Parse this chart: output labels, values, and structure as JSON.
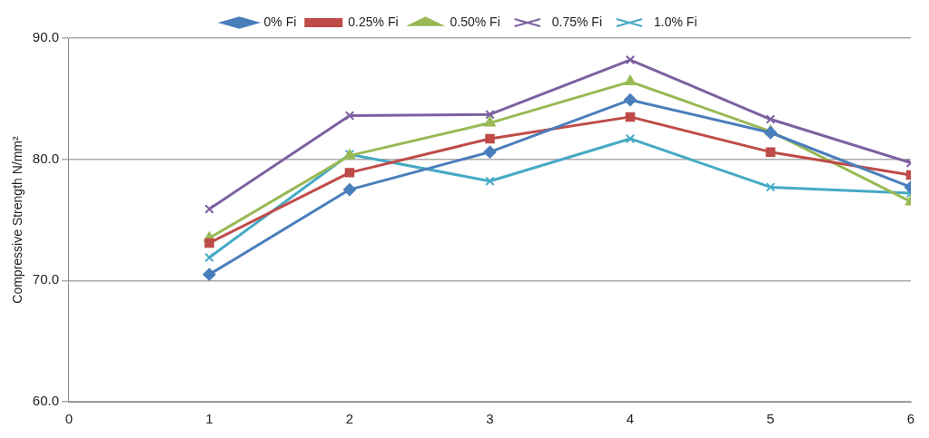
{
  "chart_data": {
    "type": "line",
    "ylabel": "Compressive Strength N/mm²",
    "x": [
      1,
      2,
      3,
      4,
      5,
      6
    ],
    "xlim": [
      0,
      6
    ],
    "xticks": [
      0,
      1,
      2,
      3,
      4,
      5,
      6
    ],
    "ylim": [
      60,
      90
    ],
    "yticks": [
      {
        "value": 60,
        "label": "60.0"
      },
      {
        "value": 70,
        "label": "70.0"
      },
      {
        "value": 80,
        "label": "80.0"
      },
      {
        "value": 90,
        "label": "90.0"
      }
    ],
    "grid": "y",
    "legend": "top",
    "line_style": "solid",
    "series": [
      {
        "name": "0% Fi",
        "color": "#4a7ebb",
        "marker": "diamond",
        "values": [
          70.5,
          77.5,
          80.6,
          84.9,
          82.2,
          77.7
        ]
      },
      {
        "name": "0.25% Fi",
        "color": "#be4b48",
        "marker": "square",
        "values": [
          73.1,
          78.9,
          81.7,
          83.5,
          80.6,
          78.7
        ]
      },
      {
        "name": "0.50% Fi",
        "color": "#98b954",
        "marker": "triangle",
        "values": [
          73.5,
          80.3,
          83.0,
          86.4,
          82.3,
          76.5
        ]
      },
      {
        "name": "0.75% Fi",
        "color": "#7d60a0",
        "marker": "cross",
        "values": [
          75.9,
          83.6,
          83.7,
          88.2,
          83.3,
          79.7
        ]
      },
      {
        "name": "1.0% Fi",
        "color": "#46aac5",
        "marker": "cross",
        "values": [
          71.9,
          80.4,
          78.2,
          81.7,
          77.7,
          77.2
        ]
      }
    ]
  }
}
